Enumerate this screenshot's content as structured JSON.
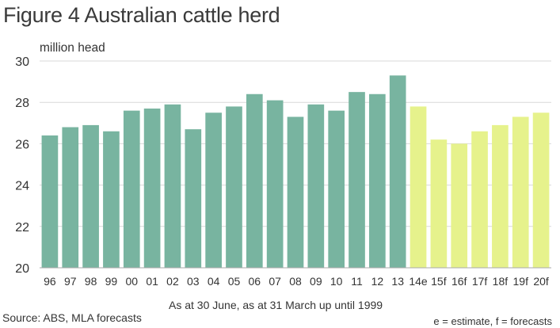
{
  "title": "Figure 4 Australian cattle herd",
  "unit_label": "million head",
  "x_caption": "As at 30 June, as at 31 March up until 1999",
  "source": "Source: ABS, MLA forecasts",
  "note": "e = estimate, f = forecasts",
  "colors": {
    "actual": "#78b4a0",
    "forecast": "#e6f28c",
    "grid": "#d9d9d9",
    "axis": "#aaaaaa"
  },
  "chart_data": {
    "type": "bar",
    "categories": [
      "96",
      "97",
      "98",
      "99",
      "00",
      "01",
      "02",
      "03",
      "04",
      "05",
      "06",
      "07",
      "08",
      "09",
      "10",
      "11",
      "12",
      "13",
      "14e",
      "15f",
      "16f",
      "17f",
      "18f",
      "19f",
      "20f"
    ],
    "values": [
      26.4,
      26.8,
      26.9,
      26.6,
      27.6,
      27.7,
      27.9,
      26.7,
      27.5,
      27.8,
      28.4,
      28.1,
      27.3,
      27.9,
      27.6,
      28.5,
      28.4,
      29.3,
      27.8,
      26.2,
      26.0,
      26.6,
      26.9,
      27.3,
      27.5
    ],
    "kind": [
      "actual",
      "actual",
      "actual",
      "actual",
      "actual",
      "actual",
      "actual",
      "actual",
      "actual",
      "actual",
      "actual",
      "actual",
      "actual",
      "actual",
      "actual",
      "actual",
      "actual",
      "actual",
      "forecast",
      "forecast",
      "forecast",
      "forecast",
      "forecast",
      "forecast",
      "forecast"
    ],
    "ylim": [
      20,
      30
    ],
    "yticks": [
      20,
      22,
      24,
      26,
      28,
      30
    ],
    "ylabel": "million head",
    "xlabel": "As at 30 June, as at 31 March up until 1999",
    "grid": true
  }
}
